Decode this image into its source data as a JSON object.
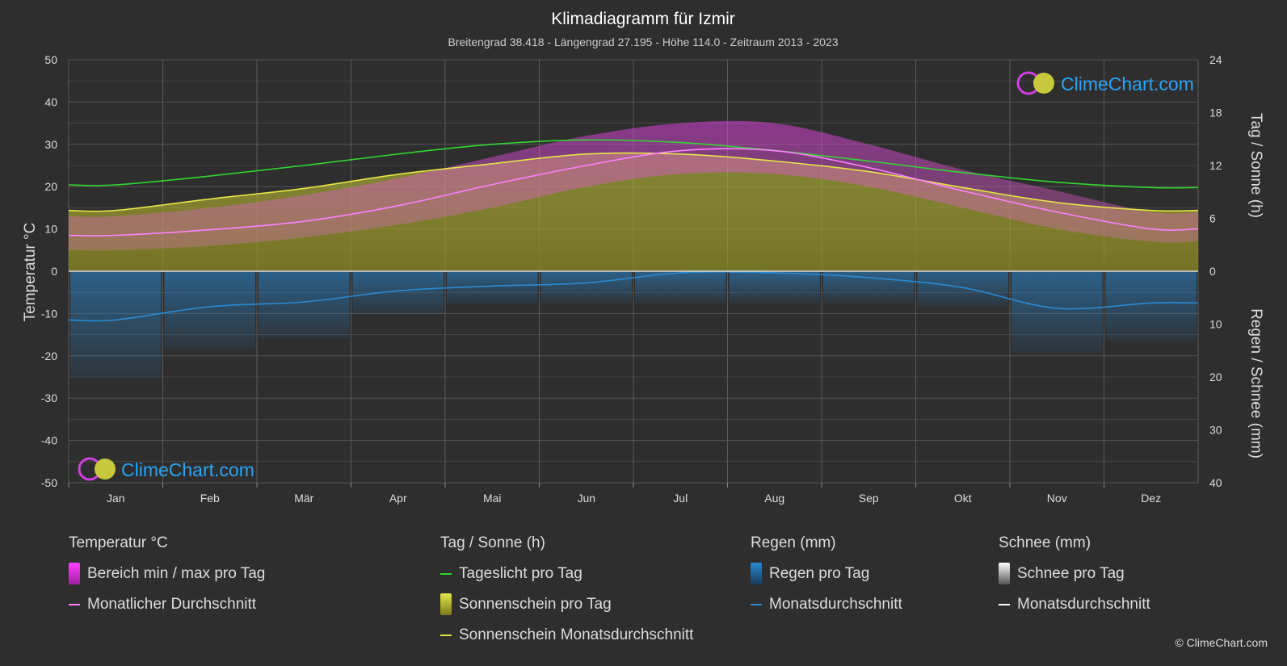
{
  "chart": {
    "title": "Klimadiagramm für Izmir",
    "subtitle": "Breitengrad 38.418 - Längengrad 27.195 - Höhe 114.0 - Zeitraum 2013 - 2023",
    "left_axis_label": "Temperatur °C",
    "right_axis_label_top": "Tag / Sonne (h)",
    "right_axis_label_bottom": "Regen / Schnee (mm)",
    "watermark": "ClimeChart.com"
  },
  "legend": {
    "temp_head": "Temperatur °C",
    "temp_range": "Bereich min / max pro Tag",
    "temp_avg": "Monatlicher Durchschnitt",
    "sun_head": "Tag / Sonne (h)",
    "daylight": "Tageslicht pro Tag",
    "sunshine": "Sonnenschein pro Tag",
    "sunshine_avg": "Sonnenschein Monatsdurchschnitt",
    "rain_head": "Regen (mm)",
    "rain_day": "Regen pro Tag",
    "rain_avg": "Monatsdurchschnitt",
    "snow_head": "Schnee (mm)",
    "snow_day": "Schnee pro Tag",
    "snow_avg": "Monatsdurchschnitt"
  },
  "copyright": "© ClimeChart.com",
  "colors": {
    "background": "#2e2e2e",
    "daylight": "#33d633",
    "sunshine_fill": "#c8c83c",
    "sunshine_avg": "#e6e64a",
    "temp_range": "#e040e0",
    "temp_avg": "#ff80ff",
    "rain": "#2a8ad4",
    "snow": "#ffffff",
    "brand": "#2aa4f4"
  },
  "chart_data": {
    "type": "line",
    "categories": [
      "Jan",
      "Feb",
      "Mär",
      "Apr",
      "Mai",
      "Jun",
      "Jul",
      "Aug",
      "Sep",
      "Okt",
      "Nov",
      "Dez"
    ],
    "left_axis": {
      "label": "Temperatur °C",
      "ticks": [
        50,
        40,
        30,
        20,
        10,
        0,
        -10,
        -20,
        -30,
        -40,
        -50
      ],
      "ylim": [
        -50,
        50
      ]
    },
    "right_axis_top": {
      "label": "Tag / Sonne (h)",
      "ticks": [
        24,
        18,
        12,
        6,
        0
      ],
      "ylim": [
        0,
        24
      ]
    },
    "right_axis_bottom": {
      "label": "Regen / Schnee (mm)",
      "ticks": [
        0,
        10,
        20,
        30,
        40
      ],
      "ylim": [
        0,
        40
      ]
    },
    "grid": true,
    "series": [
      {
        "name": "Tageslicht pro Tag",
        "axis": "right_top",
        "values": [
          9.8,
          10.8,
          12.0,
          13.3,
          14.4,
          14.9,
          14.6,
          13.7,
          12.5,
          11.2,
          10.1,
          9.5
        ]
      },
      {
        "name": "Sonnenschein Monatsdurchschnitt",
        "axis": "right_top",
        "values": [
          6.9,
          8.2,
          9.4,
          11.0,
          12.2,
          13.3,
          13.3,
          12.5,
          11.3,
          9.5,
          7.8,
          6.9
        ]
      },
      {
        "name": "Monatlicher Durchschnitt",
        "axis": "left",
        "values": [
          8.5,
          9.8,
          11.8,
          15.5,
          20.5,
          25.0,
          28.5,
          28.5,
          24.5,
          19.0,
          14.0,
          10.0
        ]
      },
      {
        "name": "Bereich min / max pro Tag (min)",
        "axis": "left",
        "values": [
          5,
          6,
          8,
          11,
          15,
          20,
          23,
          23,
          20,
          15,
          10,
          7
        ]
      },
      {
        "name": "Bereich min / max pro Tag (max)",
        "axis": "left",
        "values": [
          13,
          15,
          18,
          22,
          27,
          32,
          35,
          35,
          30,
          24,
          19,
          14
        ]
      },
      {
        "name": "Regen Monatsdurchschnitt",
        "axis": "right_bottom",
        "values": [
          9.2,
          6.7,
          5.8,
          3.7,
          2.8,
          2.2,
          0.3,
          0.3,
          1.2,
          3.1,
          7.0,
          6.0
        ]
      },
      {
        "name": "Schnee Monatsdurchschnitt",
        "axis": "right_bottom",
        "values": [
          0,
          0,
          0,
          0,
          0,
          0,
          0,
          0,
          0,
          0,
          0,
          0
        ]
      }
    ]
  }
}
